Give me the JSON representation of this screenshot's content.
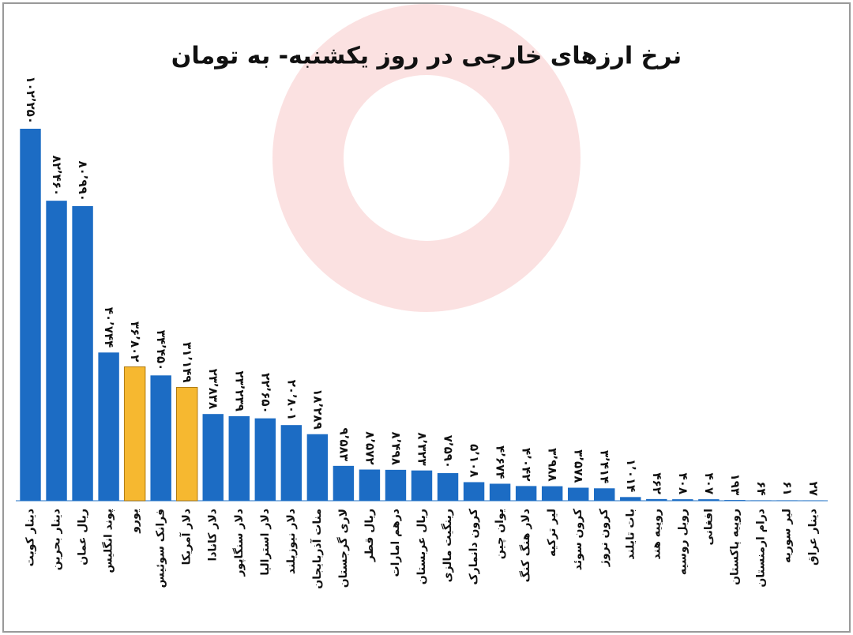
{
  "chart_data": {
    "type": "bar",
    "title": "نرخ ارزهای خارجی در روز یکشنبه- به تومان",
    "categories": [
      "دینار کویت",
      "دینار بحرین",
      "ریال عمان",
      "پوند انگلیس",
      "یورو",
      "فرانک سوئیس",
      "دلار آمریکا",
      "دلار کانادا",
      "دلار سنگاپور",
      "دلار استرالیا",
      "دلار نیوزیلند",
      "منات آذربایجان",
      "لاری گرجستان",
      "ریال قطر",
      "درهم امارات",
      "ریال عربستان",
      "رینگیت مالزی",
      "کرون دانمارک",
      "یوان چین",
      "دلار هنگ کنگ",
      "لیر ترکیه",
      "کرون سوئد",
      "کرون نروژ",
      "بات تایلند",
      "روپیه هند",
      "روبل روسیه",
      "افغانی",
      "روپیه پاکستان",
      "درام ارمنستان",
      "لیر سوریه",
      "دینار عراق"
    ],
    "values": [
      102250,
      82460,
      80990,
      40744,
      36802,
      34450,
      31149,
      23838,
      23239,
      22650,
      20801,
      18289,
      9583,
      8572,
      8498,
      8323,
      7590,
      5108,
      4674,
      4042,
      3988,
      3578,
      3414,
      1014,
      462,
      408,
      407,
      193,
      64,
      61,
      27
    ],
    "value_labels": [
      "۱۰۲٬۲۵۰",
      "۸۲٬۴۶۰",
      "۸۰٬۹۹۰",
      "۴۰٬۷۴۴",
      "۳۶٬۸۰۲",
      "۳۴٬۴۵۰",
      "۳۱٬۱۴۹",
      "۲۳٬۸۳۸",
      "۲۳٬۲۳۹",
      "۲۲٬۶۵۰",
      "۲۰٬۸۰۱",
      "۱۸٬۲۸۹",
      "۹٬۵۸۳",
      "۸٬۵۷۲",
      "۸٬۴۹۸",
      "۸٬۳۲۳",
      "۷٬۵۹۰",
      "۵٬۱۰۸",
      "۴٬۶۷۴",
      "۴٬۰۴۲",
      "۳٬۹۸۸",
      "۳٬۵۷۸",
      "۳٬۴۱۴",
      "۱٬۰۱۴",
      "۴۶۲",
      "۴۰۸",
      "۴۰۷",
      "۱۹۳",
      "۶۴",
      "۶۱",
      "۲۷"
    ],
    "colors": [
      "#1c6cc4",
      "#1c6cc4",
      "#1c6cc4",
      "#1c6cc4",
      "#f6b830",
      "#1c6cc4",
      "#f6b830",
      "#1c6cc4",
      "#1c6cc4",
      "#1c6cc4",
      "#1c6cc4",
      "#1c6cc4",
      "#1c6cc4",
      "#1c6cc4",
      "#1c6cc4",
      "#1c6cc4",
      "#1c6cc4",
      "#1c6cc4",
      "#1c6cc4",
      "#1c6cc4",
      "#1c6cc4",
      "#1c6cc4",
      "#1c6cc4",
      "#1c6cc4",
      "#1c6cc4",
      "#1c6cc4",
      "#1c6cc4",
      "#1c6cc4",
      "#1c6cc4",
      "#1c6cc4",
      "#1c6cc4"
    ],
    "ylim": [
      0,
      102250
    ]
  }
}
